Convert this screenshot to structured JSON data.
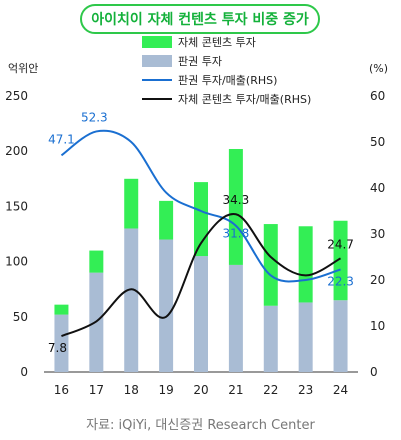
{
  "title": "아이치이 자체 컨텐츠 투자 비중 증가",
  "source": "자료: iQiYi, 대신증권 Research Center",
  "colors": {
    "self_content": "#33ee55",
    "license": "#a9bcd4",
    "license_ratio_line": "#1a6fd1",
    "self_ratio_line": "#111111",
    "title_border": "#2ec84a"
  },
  "chart_data": {
    "type": "bar",
    "stacked": true,
    "categories": [
      "16",
      "17",
      "18",
      "19",
      "20",
      "21",
      "22",
      "23",
      "24"
    ],
    "y_left": {
      "label": "억위안",
      "lim": [
        0,
        250
      ],
      "ticks": [
        0,
        50,
        100,
        150,
        200,
        250
      ]
    },
    "y_right": {
      "label": "(%)",
      "lim": [
        0,
        60
      ],
      "ticks": [
        0,
        10,
        20,
        30,
        40,
        50,
        60
      ]
    },
    "grid": false,
    "legend_position": "top-center",
    "series": [
      {
        "name": "판권 투자",
        "type": "bar",
        "axis": "left",
        "values": [
          52,
          90,
          130,
          120,
          105,
          97,
          60,
          63,
          65
        ]
      },
      {
        "name": "자체 콘텐츠 투자",
        "type": "bar",
        "axis": "left",
        "values": [
          9,
          20,
          45,
          35,
          67,
          105,
          74,
          69,
          72
        ]
      },
      {
        "name": "판권 투자/매출(RHS)",
        "type": "line",
        "axis": "right",
        "values": [
          47.1,
          52.3,
          50.0,
          39.0,
          35.0,
          31.8,
          21.0,
          20.0,
          22.3
        ]
      },
      {
        "name": "자체 콘텐츠 투자/매출(RHS)",
        "type": "line",
        "axis": "right",
        "values": [
          7.8,
          11.0,
          18.0,
          12.0,
          28.0,
          34.3,
          25.0,
          21.0,
          24.7
        ]
      }
    ],
    "annotations": [
      {
        "series": "판권 투자/매출(RHS)",
        "index": 0,
        "text": "47.1"
      },
      {
        "series": "판권 투자/매출(RHS)",
        "index": 1,
        "text": "52.3"
      },
      {
        "series": "판권 투자/매출(RHS)",
        "index": 5,
        "text": "31.8"
      },
      {
        "series": "판권 투자/매출(RHS)",
        "index": 8,
        "text": "22.3"
      },
      {
        "series": "자체 콘텐츠 투자/매출(RHS)",
        "index": 0,
        "text": "7.8"
      },
      {
        "series": "자체 콘텐츠 투자/매출(RHS)",
        "index": 5,
        "text": "34.3"
      },
      {
        "series": "자체 콘텐츠 투자/매출(RHS)",
        "index": 8,
        "text": "24.7"
      }
    ]
  }
}
